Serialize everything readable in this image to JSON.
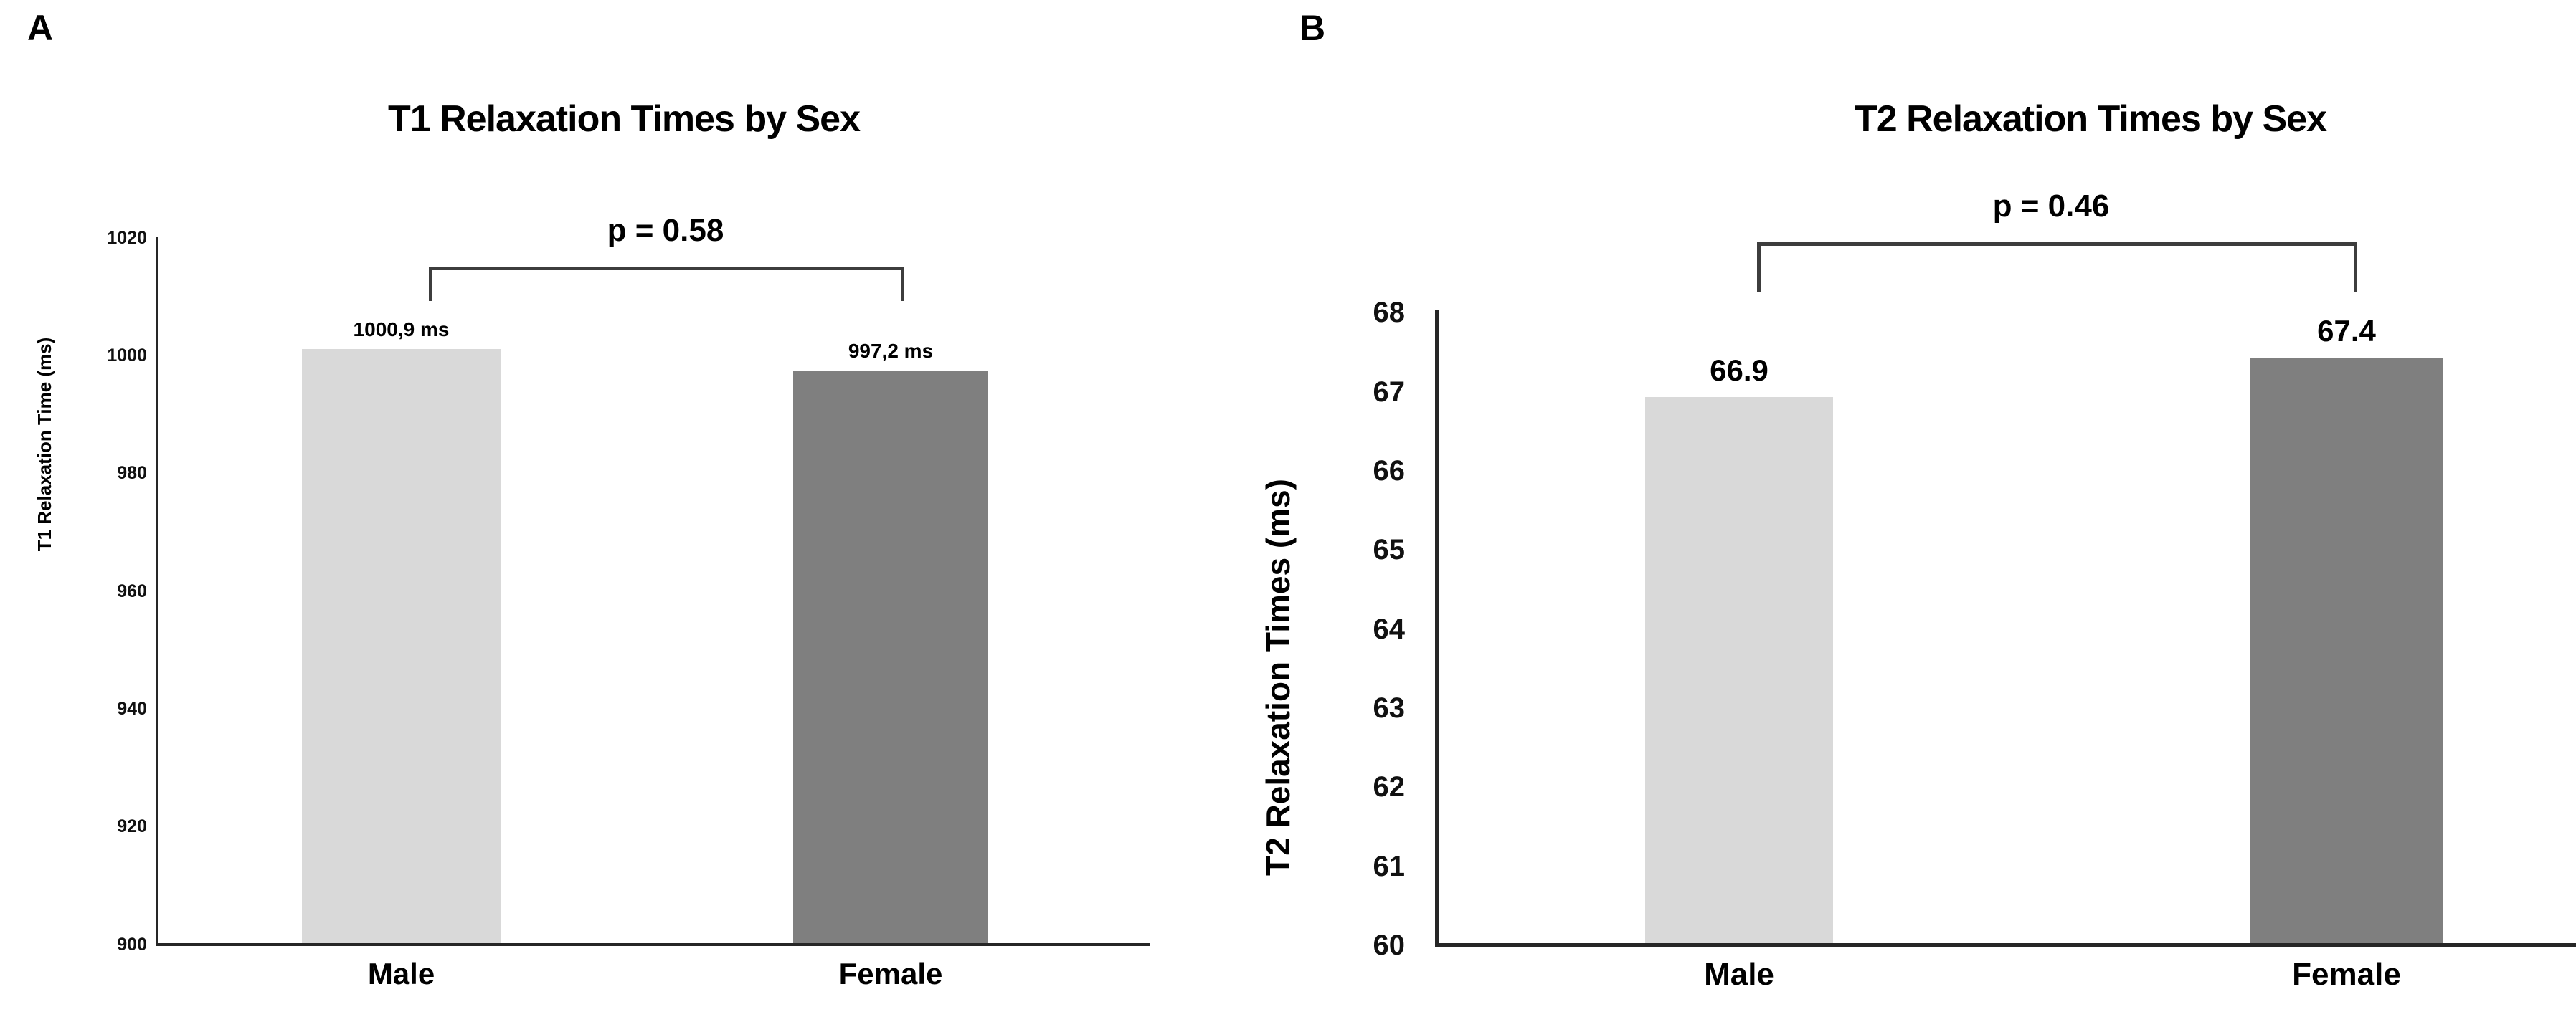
{
  "figure_background": "#ffffff",
  "colors": {
    "male_bar": "#d9d9d9",
    "female_bar": "#7f7f7f",
    "axis": "#262626",
    "bracket": "#3d3d3d",
    "text": "#000000"
  },
  "chart_data": [
    {
      "type": "bar",
      "panel": "A",
      "title": "T1 Relaxation Times by Sex",
      "annotation": "p = 0.58",
      "categories": [
        "Male",
        "Female"
      ],
      "values": [
        1000.9,
        997.2
      ],
      "value_labels": [
        "1000,9 ms",
        "997,2 ms"
      ],
      "xlabel": "",
      "ylabel": "T1 Relaxation Time (ms)",
      "ylim": [
        900,
        1020
      ],
      "yticks": [
        900,
        920,
        940,
        960,
        980,
        1000,
        1020
      ],
      "bar_colors": [
        "#d9d9d9",
        "#7f7f7f"
      ],
      "grid": "off",
      "legend": "none"
    },
    {
      "type": "bar",
      "panel": "B",
      "title": "T2 Relaxation Times by Sex",
      "annotation": "p = 0.46",
      "categories": [
        "Male",
        "Female"
      ],
      "values": [
        66.9,
        67.4
      ],
      "value_labels": [
        "66.9",
        "67.4"
      ],
      "xlabel": "",
      "ylabel": "T2 Relaxation Times (ms)",
      "ylim": [
        60,
        68
      ],
      "yticks": [
        60,
        61,
        62,
        63,
        64,
        65,
        66,
        67,
        68
      ],
      "bar_colors": [
        "#d9d9d9",
        "#7f7f7f"
      ],
      "grid": "off",
      "legend": "none"
    }
  ]
}
